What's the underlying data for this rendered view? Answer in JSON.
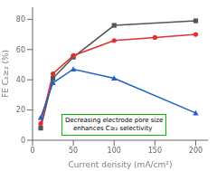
{
  "chart_data": {
    "type": "line",
    "xlabel": "Current density (mA/cm²)",
    "ylabel": "FE C₂≥₂ (%)",
    "xlim": [
      0,
      215
    ],
    "ylim": [
      0,
      88
    ],
    "xticks": [
      0,
      50,
      100,
      150,
      200
    ],
    "yticks": [
      0,
      20,
      40,
      60,
      80
    ],
    "grid": false,
    "series": [
      {
        "color": "#555555",
        "marker": "square",
        "x": [
          10,
          25,
          50,
          100,
          200
        ],
        "values": [
          8,
          41,
          55,
          76,
          79
        ]
      },
      {
        "color": "#e03030",
        "marker": "circle",
        "x": [
          10,
          25,
          50,
          100,
          150,
          200
        ],
        "values": [
          11,
          44,
          56,
          66,
          68,
          70
        ]
      },
      {
        "color": "#2060cc",
        "marker": "triangle",
        "x": [
          10,
          25,
          50,
          100,
          200
        ],
        "values": [
          15,
          38,
          47,
          41,
          18
        ]
      }
    ],
    "annotation": {
      "text": "Decreasing electrode pore size\n    enhances C≥₂ selectivity",
      "color": "#00bb00"
    }
  }
}
